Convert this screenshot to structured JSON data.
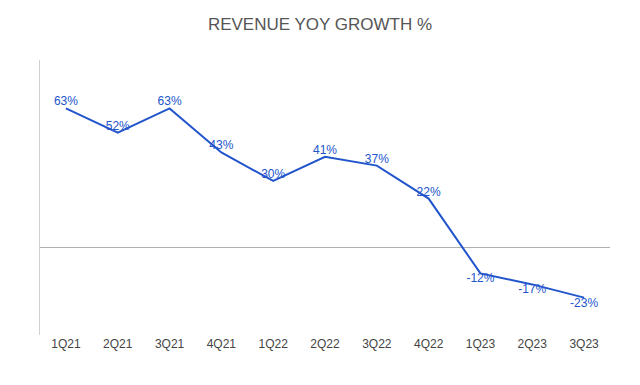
{
  "chart_data": {
    "type": "line",
    "title": "REVENUE YOY GROWTH %",
    "categories": [
      "1Q21",
      "2Q21",
      "3Q21",
      "4Q21",
      "1Q22",
      "2Q22",
      "3Q22",
      "4Q22",
      "1Q23",
      "2Q23",
      "3Q23"
    ],
    "values": [
      63,
      52,
      63,
      43,
      30,
      41,
      37,
      22,
      -12,
      -17,
      -23
    ],
    "value_labels": [
      "63%",
      "52%",
      "63%",
      "43%",
      "30%",
      "41%",
      "37%",
      "22%",
      "-12%",
      "-17%",
      "-23%"
    ],
    "color": "#2255CC",
    "ylim": [
      -40,
      85
    ],
    "grid": false,
    "data_labels": true,
    "tick_labels": "x"
  }
}
